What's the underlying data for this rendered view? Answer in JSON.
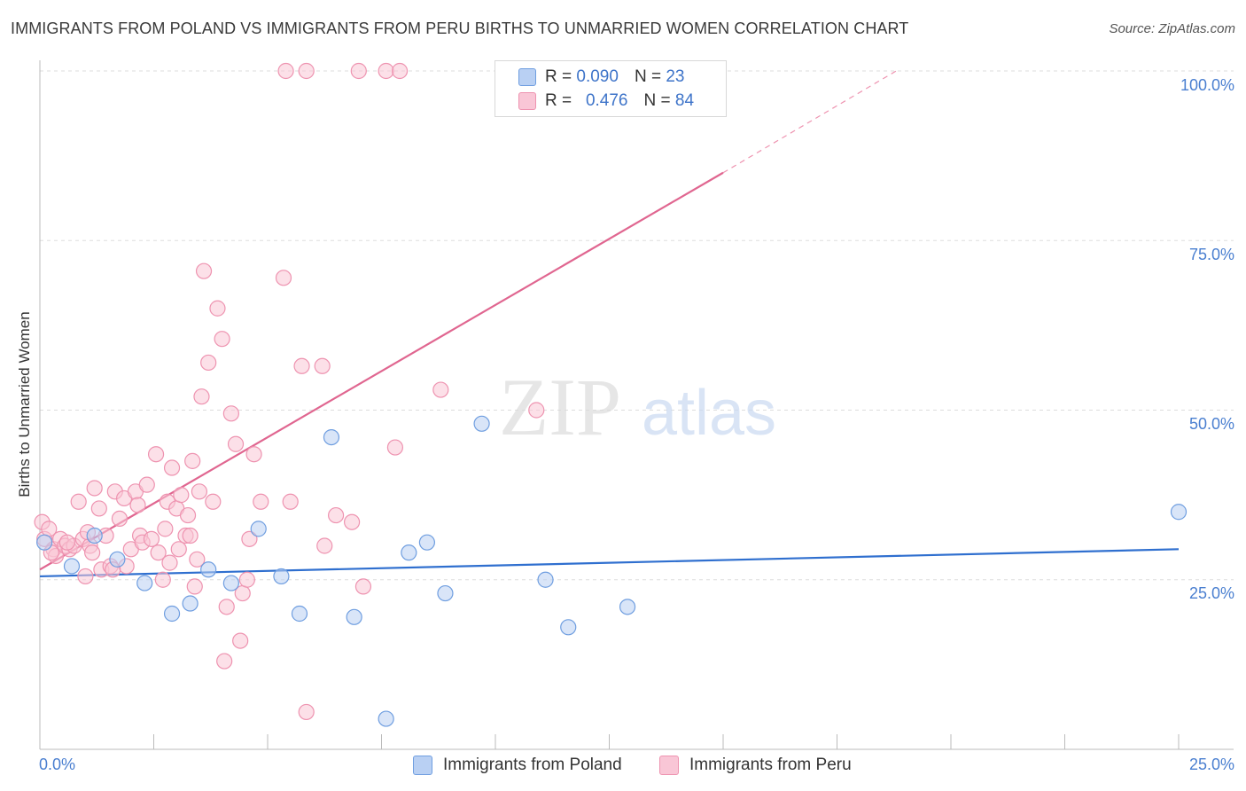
{
  "header": {
    "title": "IMMIGRANTS FROM POLAND VS IMMIGRANTS FROM PERU BIRTHS TO UNMARRIED WOMEN CORRELATION CHART",
    "source": "Source: ZipAtlas.com"
  },
  "watermark": {
    "zip": "ZIP",
    "atlas": "atlas"
  },
  "colors": {
    "poland_fill": "#b9d0f3",
    "poland_stroke": "#6f9ee0",
    "poland_line": "#2f6fcf",
    "peru_fill": "#f9c6d6",
    "peru_stroke": "#ee93b0",
    "peru_line": "#e06690",
    "tick_text": "#4a7fd0",
    "grid": "#dddddd"
  },
  "legend_top": {
    "rows": [
      {
        "r_label": "R =",
        "r_value": "0.090",
        "n_label": "N =",
        "n_value": "23"
      },
      {
        "r_label": "R =",
        "r_value": "0.476",
        "n_label": "N =",
        "n_value": "84"
      }
    ]
  },
  "legend_bottom": {
    "poland": "Immigrants from Poland",
    "peru": "Immigrants from Peru"
  },
  "chart_data": {
    "type": "scatter",
    "title": "IMMIGRANTS FROM POLAND VS IMMIGRANTS FROM PERU BIRTHS TO UNMARRIED WOMEN CORRELATION CHART",
    "xlabel": "",
    "ylabel": "Births to Unmarried Women",
    "xlim": [
      0,
      25
    ],
    "ylim": [
      0,
      100
    ],
    "x_tick_labels": [
      "0.0%",
      "25.0%"
    ],
    "y_tick_labels": [
      "100.0%",
      "75.0%",
      "50.0%",
      "25.0%"
    ],
    "y_tick_values": [
      100,
      75,
      50,
      25
    ],
    "grid": true,
    "series": [
      {
        "name": "Immigrants from Poland",
        "r": 0.09,
        "n": 23,
        "trend": {
          "x0": 0,
          "y0": 25.5,
          "x1": 25,
          "y1": 29.5
        },
        "points": [
          [
            0.1,
            30.5
          ],
          [
            0.7,
            27.0
          ],
          [
            1.2,
            31.5
          ],
          [
            1.7,
            28.0
          ],
          [
            2.3,
            24.5
          ],
          [
            2.9,
            20.0
          ],
          [
            3.3,
            21.5
          ],
          [
            3.7,
            26.5
          ],
          [
            4.2,
            24.5
          ],
          [
            4.8,
            32.5
          ],
          [
            5.3,
            25.5
          ],
          [
            5.7,
            20.0
          ],
          [
            6.4,
            46.0
          ],
          [
            6.9,
            19.5
          ],
          [
            8.1,
            29.0
          ],
          [
            8.5,
            30.5
          ],
          [
            8.9,
            23.0
          ],
          [
            9.7,
            48.0
          ],
          [
            11.1,
            25.0
          ],
          [
            11.6,
            18.0
          ],
          [
            12.9,
            21.0
          ],
          [
            25.0,
            35.0
          ],
          [
            7.6,
            4.5
          ]
        ]
      },
      {
        "name": "Immigrants from Peru",
        "r": 0.476,
        "n": 84,
        "trend": {
          "x0": 0,
          "y0": 26.5,
          "x1": 15,
          "y1": 85.0
        },
        "trend_dashed_extension": {
          "x0": 15,
          "y0": 85.0,
          "x1": 18.8,
          "y1": 100.0
        },
        "points": [
          [
            0.05,
            33.5
          ],
          [
            0.1,
            31.0
          ],
          [
            0.2,
            32.5
          ],
          [
            0.3,
            29.5
          ],
          [
            0.35,
            28.5
          ],
          [
            0.45,
            31.0
          ],
          [
            0.55,
            30.0
          ],
          [
            0.65,
            29.5
          ],
          [
            0.75,
            30.0
          ],
          [
            0.85,
            36.5
          ],
          [
            0.95,
            31.0
          ],
          [
            1.0,
            25.5
          ],
          [
            1.1,
            30.0
          ],
          [
            1.15,
            29.0
          ],
          [
            1.2,
            38.5
          ],
          [
            1.3,
            35.5
          ],
          [
            1.35,
            26.5
          ],
          [
            1.45,
            31.5
          ],
          [
            1.55,
            27.0
          ],
          [
            1.65,
            38.0
          ],
          [
            1.75,
            34.0
          ],
          [
            1.85,
            37.0
          ],
          [
            1.9,
            27.0
          ],
          [
            2.0,
            29.5
          ],
          [
            2.1,
            38.0
          ],
          [
            2.2,
            31.5
          ],
          [
            2.25,
            30.5
          ],
          [
            2.35,
            39.0
          ],
          [
            2.45,
            31.0
          ],
          [
            2.55,
            43.5
          ],
          [
            2.6,
            29.0
          ],
          [
            2.7,
            25.0
          ],
          [
            2.75,
            32.5
          ],
          [
            2.8,
            36.5
          ],
          [
            2.85,
            27.5
          ],
          [
            2.9,
            41.5
          ],
          [
            3.0,
            35.5
          ],
          [
            3.05,
            29.5
          ],
          [
            3.1,
            37.5
          ],
          [
            3.2,
            31.5
          ],
          [
            3.25,
            34.5
          ],
          [
            3.3,
            31.5
          ],
          [
            3.35,
            42.5
          ],
          [
            3.4,
            24.0
          ],
          [
            3.5,
            38.0
          ],
          [
            3.55,
            52.0
          ],
          [
            3.6,
            70.5
          ],
          [
            3.7,
            57.0
          ],
          [
            3.8,
            36.5
          ],
          [
            3.9,
            65.0
          ],
          [
            4.0,
            60.5
          ],
          [
            4.05,
            13.0
          ],
          [
            4.1,
            21.0
          ],
          [
            4.2,
            49.5
          ],
          [
            4.3,
            45.0
          ],
          [
            4.4,
            16.0
          ],
          [
            4.45,
            23.0
          ],
          [
            4.55,
            25.0
          ],
          [
            4.6,
            31.0
          ],
          [
            4.7,
            43.5
          ],
          [
            4.85,
            36.5
          ],
          [
            5.35,
            69.5
          ],
          [
            5.5,
            36.5
          ],
          [
            5.75,
            56.5
          ],
          [
            5.85,
            5.5
          ],
          [
            6.2,
            56.5
          ],
          [
            6.25,
            30.0
          ],
          [
            6.5,
            34.5
          ],
          [
            6.85,
            33.5
          ],
          [
            7.1,
            24.0
          ],
          [
            7.8,
            44.5
          ],
          [
            8.8,
            53.0
          ],
          [
            10.9,
            50.0
          ],
          [
            5.4,
            100.0
          ],
          [
            5.85,
            100.0
          ],
          [
            7.0,
            100.0
          ],
          [
            7.6,
            100.0
          ],
          [
            7.9,
            100.0
          ],
          [
            0.25,
            29.0
          ],
          [
            0.6,
            30.5
          ],
          [
            1.05,
            32.0
          ],
          [
            1.6,
            26.5
          ],
          [
            2.15,
            36.0
          ],
          [
            3.45,
            28.0
          ]
        ]
      }
    ]
  }
}
